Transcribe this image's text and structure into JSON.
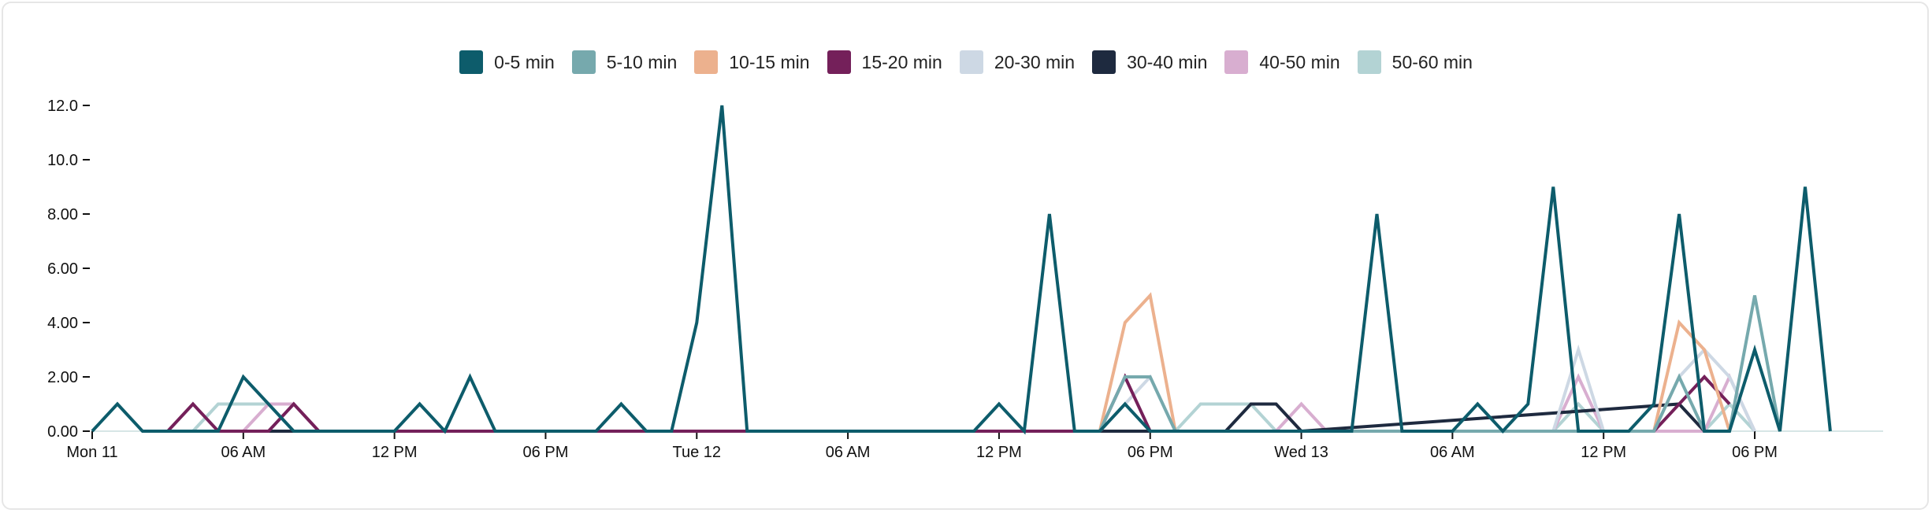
{
  "chart_data": {
    "type": "line",
    "title": "",
    "xlabel": "",
    "ylabel": "",
    "ylim": [
      0,
      12
    ],
    "yticks": [
      "0.00",
      "2.00",
      "4.00",
      "6.00",
      "8.00",
      "10.0",
      "12.0"
    ],
    "xticks": [
      "Mon 11",
      "06 AM",
      "12 PM",
      "06 PM",
      "Tue 12",
      "06 AM",
      "12 PM",
      "06 PM",
      "Wed 13",
      "06 AM",
      "12 PM",
      "06 PM"
    ],
    "x_unit": "hour since Mon 11 00:00",
    "legend_position": "top-center",
    "grid": false,
    "series": [
      {
        "name": "0-5 min",
        "color": "#0d5c6b",
        "points": [
          [
            0,
            0
          ],
          [
            1,
            1
          ],
          [
            2,
            0
          ],
          [
            5,
            0
          ],
          [
            6,
            2
          ],
          [
            7,
            1
          ],
          [
            8,
            0
          ],
          [
            12,
            0
          ],
          [
            13,
            1
          ],
          [
            14,
            0
          ],
          [
            15,
            2
          ],
          [
            16,
            0
          ],
          [
            20,
            0
          ],
          [
            21,
            1
          ],
          [
            22,
            0
          ],
          [
            23,
            0
          ],
          [
            24,
            4
          ],
          [
            25,
            12
          ],
          [
            26,
            0
          ],
          [
            35,
            0
          ],
          [
            36,
            1
          ],
          [
            37,
            0
          ],
          [
            38,
            8
          ],
          [
            39,
            0
          ],
          [
            40,
            0
          ],
          [
            41,
            1
          ],
          [
            42,
            0
          ],
          [
            50,
            0
          ],
          [
            51,
            8
          ],
          [
            52,
            0
          ],
          [
            54,
            0
          ],
          [
            55,
            1
          ],
          [
            56,
            0
          ],
          [
            57,
            1
          ],
          [
            58,
            9
          ],
          [
            59,
            0
          ],
          [
            61,
            0
          ],
          [
            62,
            1
          ],
          [
            63,
            8
          ],
          [
            64,
            0
          ],
          [
            65,
            0
          ],
          [
            66,
            3
          ],
          [
            67,
            0
          ],
          [
            68,
            9
          ],
          [
            69,
            0
          ]
        ]
      },
      {
        "name": "5-10 min",
        "color": "#76a9ad",
        "points": [
          [
            40,
            0
          ],
          [
            41,
            2
          ],
          [
            42,
            2
          ],
          [
            43,
            0
          ],
          [
            62,
            0
          ],
          [
            63,
            2
          ],
          [
            64,
            0
          ],
          [
            65,
            0
          ],
          [
            66,
            5
          ],
          [
            67,
            0
          ]
        ]
      },
      {
        "name": "10-15 min",
        "color": "#ecb18e",
        "points": [
          [
            40,
            0
          ],
          [
            41,
            4
          ],
          [
            42,
            5
          ],
          [
            43,
            0
          ],
          [
            62,
            0
          ],
          [
            63,
            4
          ],
          [
            64,
            3
          ],
          [
            65,
            0
          ]
        ]
      },
      {
        "name": "15-20 min",
        "color": "#74205a",
        "points": [
          [
            3,
            0
          ],
          [
            4,
            1
          ],
          [
            5,
            0
          ],
          [
            7,
            0
          ],
          [
            8,
            1
          ],
          [
            9,
            0
          ],
          [
            40,
            0
          ],
          [
            41,
            2
          ],
          [
            42,
            0
          ],
          [
            58,
            0
          ],
          [
            59,
            0
          ],
          [
            60,
            0
          ],
          [
            62,
            0
          ],
          [
            63,
            1
          ],
          [
            64,
            2
          ],
          [
            65,
            1
          ]
        ]
      },
      {
        "name": "20-30 min",
        "color": "#cdd8e4",
        "points": [
          [
            40,
            0
          ],
          [
            41,
            1
          ],
          [
            42,
            2
          ],
          [
            43,
            0
          ],
          [
            58,
            0
          ],
          [
            59,
            3
          ],
          [
            60,
            0
          ],
          [
            62,
            0
          ],
          [
            63,
            2
          ],
          [
            64,
            3
          ],
          [
            65,
            2
          ],
          [
            66,
            0
          ]
        ]
      },
      {
        "name": "30-40 min",
        "color": "#1e2a3f",
        "points": [
          [
            7,
            0
          ],
          [
            8,
            0
          ],
          [
            45,
            0
          ],
          [
            46,
            1
          ],
          [
            47,
            1
          ],
          [
            48,
            0
          ],
          [
            63,
            1
          ],
          [
            64,
            0
          ]
        ]
      },
      {
        "name": "40-50 min",
        "color": "#d8aed0",
        "points": [
          [
            6,
            0
          ],
          [
            7,
            1
          ],
          [
            8,
            1
          ],
          [
            9,
            0
          ],
          [
            43,
            0
          ],
          [
            44,
            0
          ],
          [
            46,
            0
          ],
          [
            47,
            0
          ],
          [
            48,
            1
          ],
          [
            49,
            0
          ],
          [
            58,
            0
          ],
          [
            59,
            2
          ],
          [
            60,
            0
          ],
          [
            64,
            0
          ],
          [
            65,
            2
          ],
          [
            66,
            0
          ]
        ]
      },
      {
        "name": "50-60 min",
        "color": "#b3d3d4",
        "points": [
          [
            3,
            0
          ],
          [
            4,
            0
          ],
          [
            5,
            1
          ],
          [
            6,
            1
          ],
          [
            7,
            1
          ],
          [
            8,
            0
          ],
          [
            43,
            0
          ],
          [
            44,
            1
          ],
          [
            45,
            1
          ],
          [
            46,
            1
          ],
          [
            47,
            0
          ],
          [
            58,
            0
          ],
          [
            59,
            1
          ],
          [
            60,
            0
          ],
          [
            64,
            0
          ],
          [
            65,
            1
          ],
          [
            66,
            0
          ]
        ]
      }
    ]
  }
}
